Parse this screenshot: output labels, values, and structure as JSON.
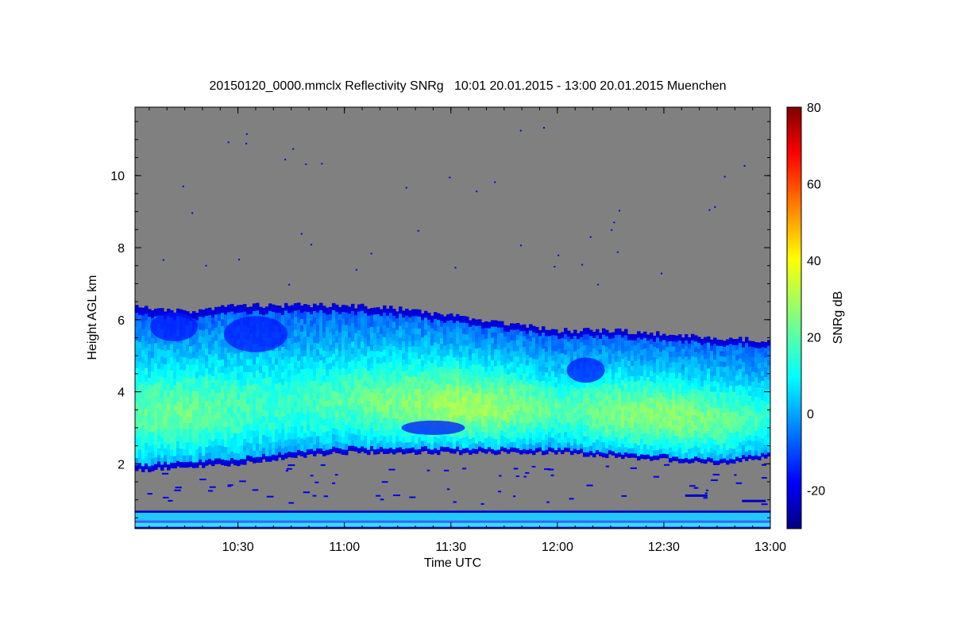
{
  "chart_data": {
    "type": "heatmap",
    "title": "20150120_0000.mmclx Reflectivity SNRg   10:01 20.01.2015 - 13:00 20.01.2015 Muenchen",
    "xlabel": "Time UTC",
    "ylabel": "Height AGL km",
    "x_unit": "time",
    "xlim": [
      "10:01",
      "13:00"
    ],
    "ylim": [
      0.2,
      11.9
    ],
    "xticks": [
      "10:30",
      "11:00",
      "11:30",
      "12:00",
      "12:30",
      "13:00"
    ],
    "yticks": [
      "2",
      "4",
      "6",
      "8",
      "10"
    ],
    "colorbar": {
      "label": "SNRg dB",
      "range": [
        -30,
        80
      ],
      "ticks": [
        "-20",
        "0",
        "20",
        "40",
        "60",
        "80"
      ],
      "colormap": "jet"
    },
    "no_signal_color": "#808080",
    "cloud_layer": {
      "times": [
        "10:01",
        "10:15",
        "10:30",
        "10:45",
        "11:00",
        "11:15",
        "11:30",
        "11:45",
        "12:00",
        "12:15",
        "12:30",
        "12:45",
        "13:00"
      ],
      "base_km": [
        1.8,
        1.9,
        2.0,
        2.2,
        2.3,
        2.3,
        2.3,
        2.3,
        2.3,
        2.2,
        2.1,
        2.0,
        2.2
      ],
      "top_km": [
        6.4,
        6.2,
        6.4,
        6.4,
        6.4,
        6.3,
        6.1,
        5.9,
        5.7,
        5.7,
        5.6,
        5.5,
        5.4
      ],
      "core_snr_db": [
        22,
        25,
        20,
        18,
        22,
        26,
        30,
        28,
        20,
        26,
        28,
        24,
        16
      ]
    },
    "near_surface_band_km": [
      0.2,
      0.7
    ]
  },
  "colors": {
    "background": "#ffffff",
    "plot_no_signal": "#808080"
  }
}
